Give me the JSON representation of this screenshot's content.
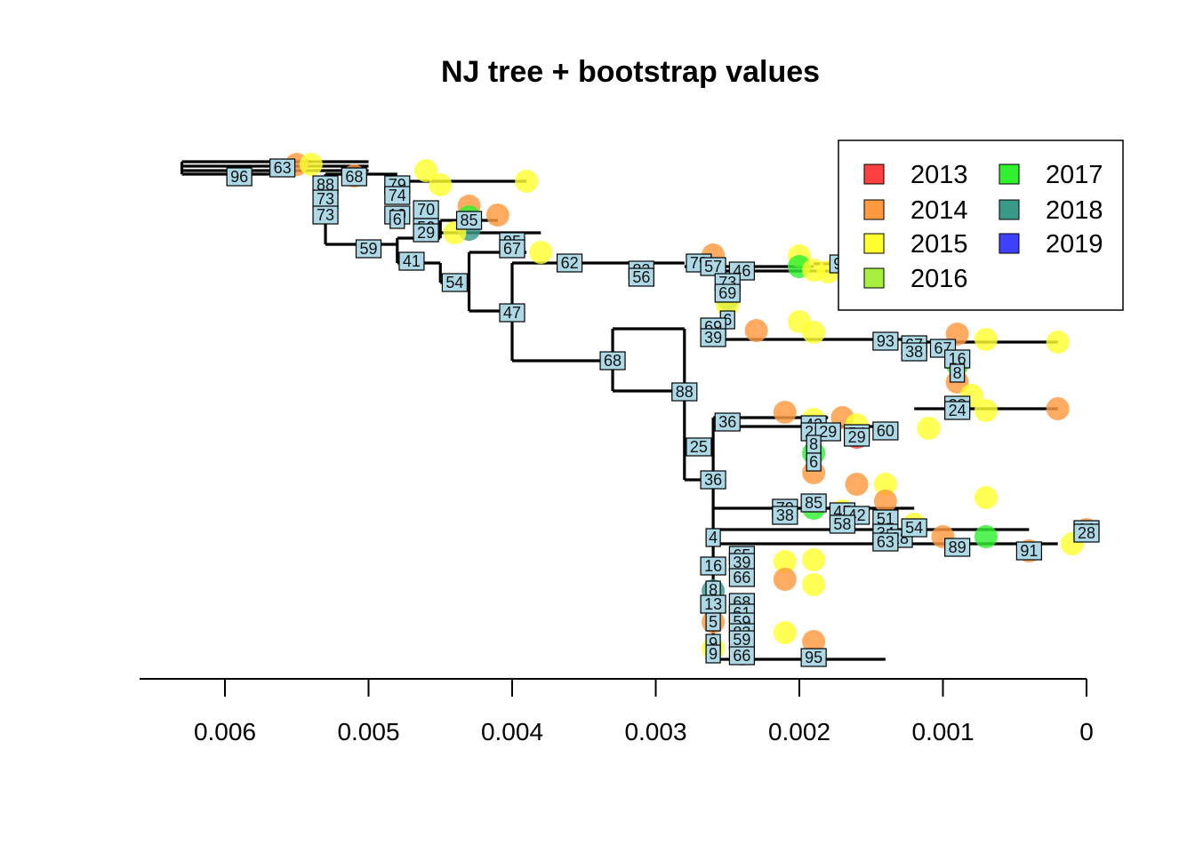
{
  "title": "NJ tree + bootstrap values",
  "axis": {
    "ticks": [
      {
        "value": 0.006,
        "label": "0.006"
      },
      {
        "value": 0.005,
        "label": "0.005"
      },
      {
        "value": 0.004,
        "label": "0.004"
      },
      {
        "value": 0.003,
        "label": "0.003"
      },
      {
        "value": 0.002,
        "label": "0.002"
      },
      {
        "value": 0.001,
        "label": "0.001"
      },
      {
        "value": 0,
        "label": "0"
      }
    ]
  },
  "legend": {
    "placement": "top-right",
    "entries": [
      {
        "year": "2013",
        "color": "#ff4040"
      },
      {
        "year": "2014",
        "color": "#ff9a40"
      },
      {
        "year": "2015",
        "color": "#ffff30"
      },
      {
        "year": "2016",
        "color": "#a8f040"
      },
      {
        "year": "2017",
        "color": "#30f030"
      },
      {
        "year": "2018",
        "color": "#3a9a8a"
      },
      {
        "year": "2019",
        "color": "#4040ff"
      }
    ]
  },
  "tree": {
    "branches": [
      [
        0.0063,
        0.0063,
        182,
        196
      ],
      [
        0.0063,
        0.005,
        182,
        182
      ],
      [
        0.0063,
        0.005,
        187,
        187
      ],
      [
        0.0063,
        0.005,
        192,
        192
      ],
      [
        0.0063,
        0.0056,
        196,
        196
      ],
      [
        0.0056,
        0.0056,
        187,
        196
      ],
      [
        0.0053,
        0.0053,
        196,
        275
      ],
      [
        0.0053,
        0.0048,
        196,
        196
      ],
      [
        0.0048,
        0.0039,
        204,
        204
      ],
      [
        0.0053,
        0.0048,
        275,
        275
      ],
      [
        0.0048,
        0.0048,
        268,
        296
      ],
      [
        0.0048,
        0.0045,
        268,
        268
      ],
      [
        0.0045,
        0.0045,
        248,
        268
      ],
      [
        0.0045,
        0.0041,
        248,
        248
      ],
      [
        0.0045,
        0.0038,
        262,
        262
      ],
      [
        0.0048,
        0.0045,
        296,
        296
      ],
      [
        0.0045,
        0.0045,
        296,
        318
      ],
      [
        0.0045,
        0.0043,
        318,
        318
      ],
      [
        0.0043,
        0.0043,
        284,
        350
      ],
      [
        0.0043,
        0.0039,
        284,
        284
      ],
      [
        0.0043,
        0.004,
        350,
        350
      ],
      [
        0.004,
        0.004,
        296,
        406
      ],
      [
        0.004,
        0.0036,
        296,
        296
      ],
      [
        0.0036,
        0.0028,
        296,
        296
      ],
      [
        0.004,
        0.0033,
        406,
        406
      ],
      [
        0.0033,
        0.0033,
        370,
        440
      ],
      [
        0.0033,
        0.0028,
        370,
        370
      ],
      [
        0.0033,
        0.0028,
        440,
        440
      ],
      [
        0.0028,
        0.0028,
        370,
        540
      ],
      [
        0.0028,
        0.0026,
        540,
        540
      ],
      [
        0.0026,
        0.0026,
        470,
        742
      ],
      [
        0.0026,
        0.0018,
        470,
        470
      ],
      [
        0.0026,
        0.0014,
        480,
        480
      ],
      [
        0.0026,
        0.0012,
        572,
        572
      ],
      [
        0.0026,
        0.0004,
        596,
        596
      ],
      [
        0.0026,
        0.0002,
        612,
        612
      ],
      [
        0.0026,
        0.0014,
        742,
        742
      ],
      [
        0.0026,
        0.0014,
        305,
        305
      ],
      [
        0.0026,
        0.0012,
        382,
        382
      ],
      [
        0.0012,
        0.0002,
        385,
        385
      ],
      [
        0.0012,
        0.0002,
        460,
        460
      ],
      [
        0.0028,
        0.0019,
        300,
        300
      ],
      [
        0.0019,
        0.0014,
        297,
        297
      ]
    ],
    "bootstrap_nodes": [
      [
        0.0056,
        189,
        "63"
      ],
      [
        0.0059,
        199,
        "96"
      ],
      [
        0.0053,
        208,
        "88"
      ],
      [
        0.0053,
        224,
        "73"
      ],
      [
        0.0053,
        242,
        "73"
      ],
      [
        0.0051,
        199,
        "68"
      ],
      [
        0.0048,
        208,
        "79"
      ],
      [
        0.0048,
        220,
        "74"
      ],
      [
        0.0048,
        242,
        "10"
      ],
      [
        0.0048,
        247,
        "6"
      ],
      [
        0.0046,
        236,
        "70"
      ],
      [
        0.0046,
        256,
        "56"
      ],
      [
        0.0046,
        262,
        "29"
      ],
      [
        0.0043,
        248,
        "85"
      ],
      [
        0.005,
        280,
        "59"
      ],
      [
        0.0047,
        294,
        "41"
      ],
      [
        0.0044,
        318,
        "54"
      ],
      [
        0.004,
        272,
        "95"
      ],
      [
        0.004,
        280,
        "67"
      ],
      [
        0.0036,
        296,
        "62"
      ],
      [
        0.004,
        352,
        "47"
      ],
      [
        0.0033,
        406,
        "68"
      ],
      [
        0.0028,
        441,
        "88"
      ],
      [
        0.0031,
        304,
        "82"
      ],
      [
        0.0031,
        312,
        "56"
      ],
      [
        0.0027,
        296,
        "79"
      ],
      [
        0.0026,
        300,
        "57"
      ],
      [
        0.0024,
        305,
        "46"
      ],
      [
        0.0017,
        297,
        "97"
      ],
      [
        0.0025,
        318,
        "73"
      ],
      [
        0.0025,
        330,
        "69"
      ],
      [
        0.0025,
        360,
        "6"
      ],
      [
        0.0026,
        368,
        "69"
      ],
      [
        0.0026,
        380,
        "39"
      ],
      [
        0.0014,
        384,
        "93"
      ],
      [
        0.0012,
        388,
        "67"
      ],
      [
        0.0012,
        396,
        "38"
      ],
      [
        0.001,
        392,
        "67"
      ],
      [
        0.0009,
        404,
        "16"
      ],
      [
        0.0009,
        420,
        "8"
      ],
      [
        0.0009,
        456,
        "28"
      ],
      [
        0.0009,
        462,
        "24"
      ],
      [
        0.0025,
        475,
        "36"
      ],
      [
        0.0027,
        503,
        "25"
      ],
      [
        0.0026,
        540,
        "36"
      ],
      [
        0.0019,
        478,
        "42"
      ],
      [
        0.0019,
        486,
        "22"
      ],
      [
        0.0018,
        486,
        "29"
      ],
      [
        0.0016,
        488,
        "54"
      ],
      [
        0.0016,
        492,
        "29"
      ],
      [
        0.0014,
        485,
        "60"
      ],
      [
        0.0019,
        500,
        "8"
      ],
      [
        0.0019,
        520,
        "6"
      ],
      [
        0.0019,
        566,
        "85"
      ],
      [
        0.0021,
        572,
        "79"
      ],
      [
        0.0021,
        580,
        "38"
      ],
      [
        0.0017,
        576,
        "45"
      ],
      [
        0.0016,
        580,
        "42"
      ],
      [
        0.0017,
        590,
        "58"
      ],
      [
        0.0014,
        584,
        "51"
      ],
      [
        0.0014,
        600,
        "34"
      ],
      [
        0.0013,
        606,
        "28"
      ],
      [
        0.0014,
        610,
        "63"
      ],
      [
        0.0012,
        594,
        "54"
      ],
      [
        0.0009,
        616,
        "89"
      ],
      [
        0.0004,
        620,
        "91"
      ],
      [
        0.0,
        596,
        "96"
      ],
      [
        0.0,
        600,
        "28"
      ],
      [
        0.0026,
        605,
        "4"
      ],
      [
        0.0026,
        637,
        "16"
      ],
      [
        0.0024,
        625,
        "65"
      ],
      [
        0.0024,
        633,
        "39"
      ],
      [
        0.0024,
        650,
        "66"
      ],
      [
        0.0026,
        664,
        "8"
      ],
      [
        0.0024,
        678,
        "68"
      ],
      [
        0.0024,
        690,
        "61"
      ],
      [
        0.0024,
        700,
        "59"
      ],
      [
        0.0026,
        680,
        "13"
      ],
      [
        0.0026,
        700,
        "5"
      ],
      [
        0.0024,
        712,
        "83"
      ],
      [
        0.0024,
        720,
        "59"
      ],
      [
        0.0026,
        724,
        "9"
      ],
      [
        0.0026,
        736,
        "9"
      ],
      [
        0.0024,
        738,
        "66"
      ],
      [
        0.0019,
        740,
        "95"
      ]
    ],
    "tips": [
      [
        0.0055,
        185,
        "2014"
      ],
      [
        0.0054,
        185,
        "2015"
      ],
      [
        0.0051,
        198,
        "2014"
      ],
      [
        0.0046,
        192,
        "2015"
      ],
      [
        0.0045,
        208,
        "2015"
      ],
      [
        0.0039,
        204,
        "2015"
      ],
      [
        0.0043,
        232,
        "2014"
      ],
      [
        0.0041,
        242,
        "2014"
      ],
      [
        0.0043,
        258,
        "2018"
      ],
      [
        0.0043,
        244,
        "2017"
      ],
      [
        0.0044,
        262,
        "2015"
      ],
      [
        0.004,
        276,
        "2015"
      ],
      [
        0.0038,
        284,
        "2015"
      ],
      [
        0.0026,
        287,
        "2014"
      ],
      [
        0.002,
        288,
        "2015"
      ],
      [
        0.002,
        300,
        "2017"
      ],
      [
        0.0019,
        304,
        "2015"
      ],
      [
        0.0018,
        306,
        "2015"
      ],
      [
        0.0025,
        336,
        "2018"
      ],
      [
        0.0025,
        344,
        "2015"
      ],
      [
        0.0023,
        372,
        "2014"
      ],
      [
        0.002,
        362,
        "2015"
      ],
      [
        0.0019,
        374,
        "2015"
      ],
      [
        0.0009,
        376,
        "2014"
      ],
      [
        0.0007,
        382,
        "2015"
      ],
      [
        0.0002,
        385,
        "2015"
      ],
      [
        0.0009,
        410,
        "2017"
      ],
      [
        0.0009,
        430,
        "2014"
      ],
      [
        0.0008,
        445,
        "2015"
      ],
      [
        0.0007,
        462,
        "2015"
      ],
      [
        0.0002,
        460,
        "2014"
      ],
      [
        0.0021,
        464,
        "2014"
      ],
      [
        0.0019,
        472,
        "2015"
      ],
      [
        0.0017,
        470,
        "2014"
      ],
      [
        0.0016,
        478,
        "2015"
      ],
      [
        0.0016,
        492,
        "2013"
      ],
      [
        0.0011,
        482,
        "2015"
      ],
      [
        0.0019,
        510,
        "2017"
      ],
      [
        0.0019,
        532,
        "2014"
      ],
      [
        0.0016,
        545,
        "2014"
      ],
      [
        0.0014,
        545,
        "2015"
      ],
      [
        0.0007,
        560,
        "2015"
      ],
      [
        0.0014,
        564,
        "2014"
      ],
      [
        0.0019,
        572,
        "2017"
      ],
      [
        0.0017,
        575,
        "2015"
      ],
      [
        0.0012,
        590,
        "2015"
      ],
      [
        0.001,
        604,
        "2014"
      ],
      [
        0.0007,
        604,
        "2017"
      ],
      [
        0.0001,
        612,
        "2015"
      ],
      [
        0.0004,
        620,
        "2014"
      ],
      [
        0.0,
        596,
        "2014"
      ],
      [
        0.0021,
        632,
        "2015"
      ],
      [
        0.0019,
        630,
        "2015"
      ],
      [
        0.0021,
        652,
        "2014"
      ],
      [
        0.0019,
        658,
        "2015"
      ],
      [
        0.0026,
        665,
        "2018"
      ],
      [
        0.0026,
        700,
        "2014"
      ],
      [
        0.0021,
        712,
        "2015"
      ],
      [
        0.0019,
        722,
        "2014"
      ],
      [
        0.0026,
        730,
        "2015"
      ],
      [
        0.0024,
        736,
        "2013"
      ]
    ]
  }
}
